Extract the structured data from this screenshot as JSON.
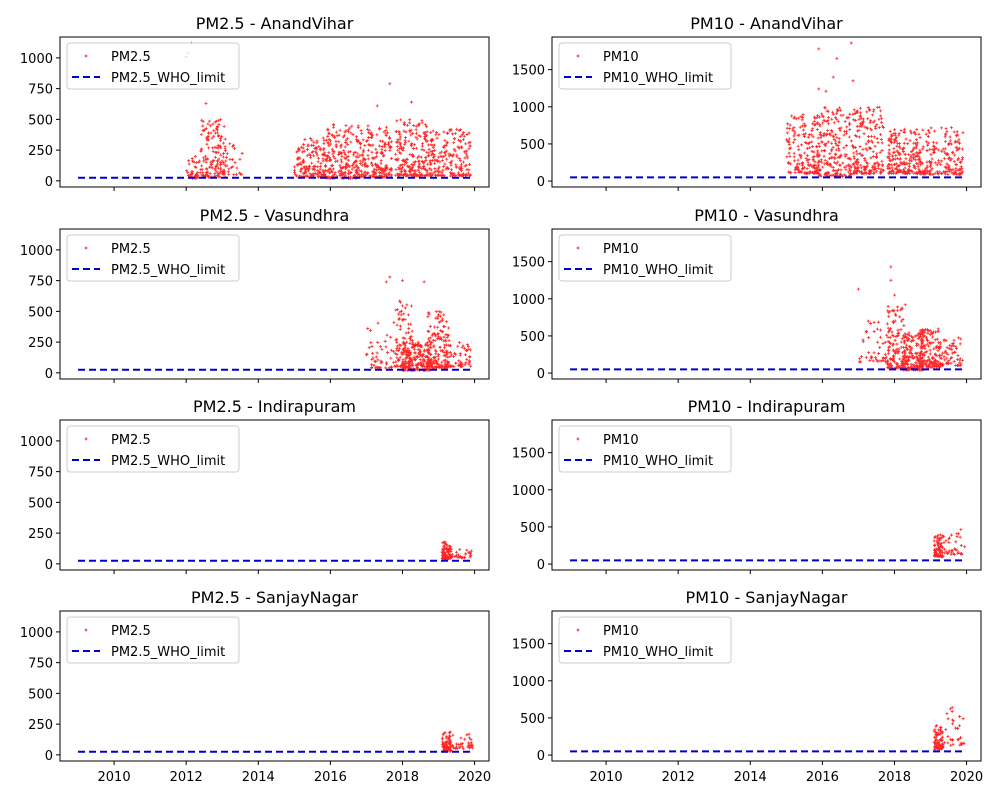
{
  "figure": {
    "rows": 4,
    "cols": 2,
    "sharex": true
  },
  "chart_data": [
    {
      "type": "scatter",
      "title": "PM2.5 - AnandVihar",
      "station": "AnandVihar",
      "pollutant": "PM2.5",
      "xlim": [
        2008.5,
        2020.4
      ],
      "ylim": [
        -50,
        1170
      ],
      "xticks": [
        2010,
        2012,
        2014,
        2016,
        2018,
        2020
      ],
      "yticks": [
        0,
        250,
        500,
        750,
        1000
      ],
      "show_xticklabels": false,
      "legend": {
        "placement": "upper-left",
        "entries": [
          "PM2.5",
          "PM2.5_WHO_limit"
        ]
      },
      "series": [
        {
          "name": "PM2.5",
          "kind": "scatter",
          "color": "#ff0000",
          "clusters": [
            {
              "x": [
                2012.0,
                2012.4
              ],
              "y": [
                20,
                200
              ],
              "n": 40
            },
            {
              "x": [
                2012.4,
                2013.1
              ],
              "y": [
                30,
                500
              ],
              "n": 140
            },
            {
              "x": [
                2013.0,
                2013.6
              ],
              "y": [
                50,
                320
              ],
              "n": 30
            },
            {
              "x": [
                2015.0,
                2015.9
              ],
              "y": [
                30,
                350
              ],
              "n": 160
            },
            {
              "x": [
                2015.9,
                2016.8
              ],
              "y": [
                20,
                480
              ],
              "n": 200
            },
            {
              "x": [
                2016.8,
                2017.7
              ],
              "y": [
                30,
                450
              ],
              "n": 190
            },
            {
              "x": [
                2017.8,
                2018.7
              ],
              "y": [
                40,
                500
              ],
              "n": 200
            },
            {
              "x": [
                2018.7,
                2019.9
              ],
              "y": [
                40,
                420
              ],
              "n": 200
            }
          ],
          "outliers": [
            [
              2012.0,
              1010
            ],
            [
              2012.05,
              1040
            ],
            [
              2012.15,
              1120
            ],
            [
              2017.65,
              790
            ],
            [
              2018.25,
              640
            ],
            [
              2012.55,
              630
            ],
            [
              2017.3,
              610
            ]
          ]
        },
        {
          "name": "PM2.5_WHO_limit",
          "kind": "line",
          "style": "dashed",
          "color": "#0000cc",
          "x": [
            2009,
            2019.9
          ],
          "y": [
            25,
            25
          ]
        }
      ]
    },
    {
      "type": "scatter",
      "title": "PM10 - AnandVihar",
      "station": "AnandVihar",
      "pollutant": "PM10",
      "xlim": [
        2008.5,
        2020.4
      ],
      "ylim": [
        -80,
        1940
      ],
      "xticks": [
        2010,
        2012,
        2014,
        2016,
        2018,
        2020
      ],
      "yticks": [
        0,
        500,
        1000,
        1500
      ],
      "show_xticklabels": false,
      "legend": {
        "placement": "upper-left",
        "entries": [
          "PM10",
          "PM10_WHO_limit"
        ]
      },
      "series": [
        {
          "name": "PM10",
          "kind": "scatter",
          "color": "#ff0000",
          "clusters": [
            {
              "x": [
                2015.0,
                2015.9
              ],
              "y": [
                100,
                900
              ],
              "n": 170
            },
            {
              "x": [
                2015.9,
                2016.8
              ],
              "y": [
                60,
                1000
              ],
              "n": 200
            },
            {
              "x": [
                2016.8,
                2017.7
              ],
              "y": [
                100,
                1000
              ],
              "n": 190
            },
            {
              "x": [
                2017.8,
                2018.7
              ],
              "y": [
                100,
                700
              ],
              "n": 200
            },
            {
              "x": [
                2018.7,
                2019.9
              ],
              "y": [
                90,
                720
              ],
              "n": 190
            }
          ],
          "outliers": [
            [
              2015.9,
              1780
            ],
            [
              2016.4,
              1650
            ],
            [
              2016.8,
              1860
            ],
            [
              2016.3,
              1400
            ],
            [
              2016.85,
              1350
            ],
            [
              2015.9,
              1240
            ],
            [
              2016.1,
              1210
            ]
          ]
        },
        {
          "name": "PM10_WHO_limit",
          "kind": "line",
          "style": "dashed",
          "color": "#0000cc",
          "x": [
            2009,
            2019.9
          ],
          "y": [
            50,
            50
          ]
        }
      ]
    },
    {
      "type": "scatter",
      "title": "PM2.5 - Vasundhra",
      "station": "Vasundhra",
      "pollutant": "PM2.5",
      "xlim": [
        2008.5,
        2020.4
      ],
      "ylim": [
        -50,
        1170
      ],
      "xticks": [
        2010,
        2012,
        2014,
        2016,
        2018,
        2020
      ],
      "yticks": [
        0,
        250,
        500,
        750,
        1000
      ],
      "show_xticklabels": false,
      "legend": {
        "placement": "upper-left",
        "entries": [
          "PM2.5",
          "PM2.5_WHO_limit"
        ]
      },
      "series": [
        {
          "name": "PM2.5",
          "kind": "scatter",
          "color": "#ff0000",
          "clusters": [
            {
              "x": [
                2017.0,
                2017.8
              ],
              "y": [
                40,
                420
              ],
              "n": 50
            },
            {
              "x": [
                2017.8,
                2018.3
              ],
              "y": [
                50,
                600
              ],
              "n": 90
            },
            {
              "x": [
                2018.0,
                2018.8
              ],
              "y": [
                20,
                250
              ],
              "n": 200
            },
            {
              "x": [
                2018.7,
                2019.3
              ],
              "y": [
                40,
                500
              ],
              "n": 150
            },
            {
              "x": [
                2019.2,
                2019.9
              ],
              "y": [
                50,
                250
              ],
              "n": 60
            }
          ],
          "outliers": [
            [
              2017.65,
              780
            ],
            [
              2017.55,
              740
            ],
            [
              2018.0,
              750
            ],
            [
              2018.6,
              740
            ]
          ]
        },
        {
          "name": "PM2.5_WHO_limit",
          "kind": "line",
          "style": "dashed",
          "color": "#0000cc",
          "x": [
            2009,
            2019.9
          ],
          "y": [
            25,
            25
          ]
        }
      ]
    },
    {
      "type": "scatter",
      "title": "PM10 - Vasundhra",
      "station": "Vasundhra",
      "pollutant": "PM10",
      "xlim": [
        2008.5,
        2020.4
      ],
      "ylim": [
        -80,
        1940
      ],
      "xticks": [
        2010,
        2012,
        2014,
        2016,
        2018,
        2020
      ],
      "yticks": [
        0,
        500,
        1000,
        1500
      ],
      "show_xticklabels": false,
      "legend": {
        "placement": "upper-left",
        "entries": [
          "PM10",
          "PM10_WHO_limit"
        ]
      },
      "series": [
        {
          "name": "PM10",
          "kind": "scatter",
          "color": "#ff0000",
          "clusters": [
            {
              "x": [
                2017.0,
                2017.8
              ],
              "y": [
                150,
                700
              ],
              "n": 45
            },
            {
              "x": [
                2017.8,
                2018.3
              ],
              "y": [
                60,
                900
              ],
              "n": 120
            },
            {
              "x": [
                2018.2,
                2018.8
              ],
              "y": [
                40,
                550
              ],
              "n": 180
            },
            {
              "x": [
                2018.7,
                2019.3
              ],
              "y": [
                80,
                600
              ],
              "n": 150
            },
            {
              "x": [
                2019.2,
                2019.9
              ],
              "y": [
                100,
                480
              ],
              "n": 60
            }
          ],
          "outliers": [
            [
              2017.9,
              1430
            ],
            [
              2017.9,
              1250
            ],
            [
              2017.0,
              1130
            ],
            [
              2018.0,
              1050
            ],
            [
              2018.3,
              920
            ]
          ]
        },
        {
          "name": "PM10_WHO_limit",
          "kind": "line",
          "style": "dashed",
          "color": "#0000cc",
          "x": [
            2009,
            2019.9
          ],
          "y": [
            50,
            50
          ]
        }
      ]
    },
    {
      "type": "scatter",
      "title": "PM2.5 - Indirapuram",
      "station": "Indirapuram",
      "pollutant": "PM2.5",
      "xlim": [
        2008.5,
        2020.4
      ],
      "ylim": [
        -50,
        1170
      ],
      "xticks": [
        2010,
        2012,
        2014,
        2016,
        2018,
        2020
      ],
      "yticks": [
        0,
        250,
        500,
        750,
        1000
      ],
      "show_xticklabels": false,
      "legend": {
        "placement": "upper-left",
        "entries": [
          "PM2.5",
          "PM2.5_WHO_limit"
        ]
      },
      "series": [
        {
          "name": "PM2.5",
          "kind": "scatter",
          "color": "#ff0000",
          "clusters": [
            {
              "x": [
                2019.1,
                2019.35
              ],
              "y": [
                40,
                180
              ],
              "n": 90
            },
            {
              "x": [
                2019.35,
                2019.95
              ],
              "y": [
                50,
                140
              ],
              "n": 30
            }
          ],
          "outliers": []
        },
        {
          "name": "PM2.5_WHO_limit",
          "kind": "line",
          "style": "dashed",
          "color": "#0000cc",
          "x": [
            2009,
            2019.9
          ],
          "y": [
            25,
            25
          ]
        }
      ]
    },
    {
      "type": "scatter",
      "title": "PM10 - Indirapuram",
      "station": "Indirapuram",
      "pollutant": "PM10",
      "xlim": [
        2008.5,
        2020.4
      ],
      "ylim": [
        -80,
        1940
      ],
      "xticks": [
        2010,
        2012,
        2014,
        2016,
        2018,
        2020
      ],
      "yticks": [
        0,
        500,
        1000,
        1500
      ],
      "show_xticklabels": false,
      "legend": {
        "placement": "upper-left",
        "entries": [
          "PM10",
          "PM10_WHO_limit"
        ]
      },
      "series": [
        {
          "name": "PM10",
          "kind": "scatter",
          "color": "#ff0000",
          "clusters": [
            {
              "x": [
                2019.1,
                2019.35
              ],
              "y": [
                100,
                400
              ],
              "n": 80
            },
            {
              "x": [
                2019.35,
                2019.95
              ],
              "y": [
                130,
                490
              ],
              "n": 35
            }
          ],
          "outliers": []
        },
        {
          "name": "PM10_WHO_limit",
          "kind": "line",
          "style": "dashed",
          "color": "#0000cc",
          "x": [
            2009,
            2019.9
          ],
          "y": [
            50,
            50
          ]
        }
      ]
    },
    {
      "type": "scatter",
      "title": "PM2.5 - SanjayNagar",
      "station": "SanjayNagar",
      "pollutant": "PM2.5",
      "xlim": [
        2008.5,
        2020.4
      ],
      "ylim": [
        -50,
        1170
      ],
      "xticks": [
        2010,
        2012,
        2014,
        2016,
        2018,
        2020
      ],
      "yticks": [
        0,
        250,
        500,
        750,
        1000
      ],
      "xticklabels": [
        "2010",
        "2012",
        "2014",
        "2016",
        "2018",
        "2020"
      ],
      "show_xticklabels": true,
      "legend": {
        "placement": "upper-left",
        "entries": [
          "PM2.5",
          "PM2.5_WHO_limit"
        ]
      },
      "series": [
        {
          "name": "PM2.5",
          "kind": "scatter",
          "color": "#ff0000",
          "clusters": [
            {
              "x": [
                2019.1,
                2019.35
              ],
              "y": [
                30,
                190
              ],
              "n": 80
            },
            {
              "x": [
                2019.35,
                2019.95
              ],
              "y": [
                50,
                170
              ],
              "n": 35
            }
          ],
          "outliers": []
        },
        {
          "name": "PM2.5_WHO_limit",
          "kind": "line",
          "style": "dashed",
          "color": "#0000cc",
          "x": [
            2009,
            2019.9
          ],
          "y": [
            25,
            25
          ]
        }
      ]
    },
    {
      "type": "scatter",
      "title": "PM10 - SanjayNagar",
      "station": "SanjayNagar",
      "pollutant": "PM10",
      "xlim": [
        2008.5,
        2020.4
      ],
      "ylim": [
        -80,
        1940
      ],
      "xticks": [
        2010,
        2012,
        2014,
        2016,
        2018,
        2020
      ],
      "yticks": [
        0,
        500,
        1000,
        1500
      ],
      "xticklabels": [
        "2010",
        "2012",
        "2014",
        "2016",
        "2018",
        "2020"
      ],
      "show_xticklabels": true,
      "legend": {
        "placement": "upper-left",
        "entries": [
          "PM10",
          "PM10_WHO_limit"
        ]
      },
      "series": [
        {
          "name": "PM10",
          "kind": "scatter",
          "color": "#ff0000",
          "clusters": [
            {
              "x": [
                2019.1,
                2019.35
              ],
              "y": [
                80,
                400
              ],
              "n": 80
            },
            {
              "x": [
                2019.35,
                2019.95
              ],
              "y": [
                130,
                640
              ],
              "n": 30
            }
          ],
          "outliers": [
            [
              2019.55,
              620
            ],
            [
              2019.6,
              640
            ]
          ]
        },
        {
          "name": "PM10_WHO_limit",
          "kind": "line",
          "style": "dashed",
          "color": "#0000cc",
          "x": [
            2009,
            2019.9
          ],
          "y": [
            50,
            50
          ]
        }
      ]
    }
  ]
}
